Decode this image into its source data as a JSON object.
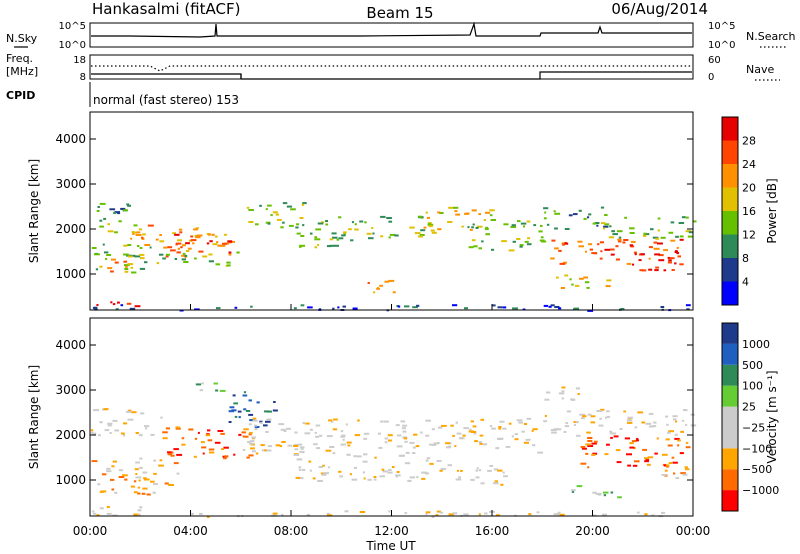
{
  "header": {
    "station": "Hankasalmi (fitACF)",
    "beam": "Beam 15",
    "date": "06/Aug/2014"
  },
  "top_panels": {
    "nsky_label": "N.Sky",
    "nsearch_label": "N.Search",
    "noise_ticks": [
      "10^5",
      "10^0"
    ],
    "freq_label": "Freq.",
    "freq_unit": "[MHz]",
    "freq_ticks": [
      "18",
      "8"
    ],
    "nave_label": "Nave",
    "nave_ticks": [
      "60",
      "0"
    ],
    "cpid_label": "CPID",
    "cpid_text": "normal (fast stereo) 153"
  },
  "colors": {
    "power_scale": [
      "#0000ff",
      "#1e3a8a",
      "#2e8b57",
      "#66c000",
      "#e0c000",
      "#ff9000",
      "#ff4500",
      "#e60000"
    ],
    "velocity_scale": [
      "#ff0000",
      "#ff6a00",
      "#ffa500",
      "#cccccc",
      "#cccccc",
      "#66cc33",
      "#2e8b57",
      "#1e5fbf",
      "#1e3a8a"
    ]
  },
  "chart_data": [
    {
      "type": "heatmap",
      "name": "power",
      "xlabel": "",
      "ylabel": "Slant Range [km]",
      "xlim": [
        0,
        24
      ],
      "ylim": [
        200,
        4600
      ],
      "yticks": [
        "1000",
        "2000",
        "3000",
        "4000"
      ],
      "colorbar_label": "Power [dB]",
      "colorbar_ticks": [
        "4",
        "8",
        "12",
        "16",
        "20",
        "24",
        "28"
      ],
      "bands": [
        {
          "t0": 0.0,
          "t1": 2.2,
          "r0": 2200,
          "r1": 2600,
          "level": 2
        },
        {
          "t0": 0.3,
          "t1": 1.8,
          "r0": 1900,
          "r1": 2200,
          "level": 3
        },
        {
          "t0": 0.0,
          "t1": 3.0,
          "r0": 1050,
          "r1": 1700,
          "level": 3
        },
        {
          "t0": 0.5,
          "t1": 1.5,
          "r0": 1050,
          "r1": 1350,
          "level": 6
        },
        {
          "t0": 0.0,
          "t1": 2.0,
          "r0": 300,
          "r1": 420,
          "level": 7
        },
        {
          "t0": 1.6,
          "t1": 5.8,
          "r0": 1500,
          "r1": 2100,
          "level": 5
        },
        {
          "t0": 3.0,
          "t1": 5.6,
          "r0": 1400,
          "r1": 1900,
          "level": 6
        },
        {
          "t0": 2.5,
          "t1": 6.0,
          "r0": 1200,
          "r1": 1500,
          "level": 3
        },
        {
          "t0": 6.0,
          "t1": 8.5,
          "r0": 2100,
          "r1": 2600,
          "level": 3
        },
        {
          "t0": 7.5,
          "t1": 10.5,
          "r0": 1600,
          "r1": 2300,
          "level": 3
        },
        {
          "t0": 10.5,
          "t1": 13.5,
          "r0": 1800,
          "r1": 2300,
          "level": 3
        },
        {
          "t0": 13.0,
          "t1": 16.0,
          "r0": 1900,
          "r1": 2500,
          "level": 4
        },
        {
          "t0": 15.0,
          "t1": 18.0,
          "r0": 1500,
          "r1": 2200,
          "level": 3
        },
        {
          "t0": 18.0,
          "t1": 20.5,
          "r0": 2000,
          "r1": 2500,
          "level": 2
        },
        {
          "t0": 18.0,
          "t1": 23.5,
          "r0": 1200,
          "r1": 1800,
          "level": 6
        },
        {
          "t0": 21.5,
          "t1": 23.5,
          "r0": 1000,
          "r1": 1500,
          "level": 7
        },
        {
          "t0": 20.0,
          "t1": 24.0,
          "r0": 1800,
          "r1": 2300,
          "level": 3
        },
        {
          "t0": 11.0,
          "t1": 12.3,
          "r0": 500,
          "r1": 900,
          "level": 5
        },
        {
          "t0": 18.5,
          "t1": 21.0,
          "r0": 700,
          "r1": 1000,
          "level": 4
        },
        {
          "t0": 0.0,
          "t1": 24.0,
          "r0": 200,
          "r1": 330,
          "level": 1
        }
      ]
    },
    {
      "type": "heatmap",
      "name": "velocity",
      "xlabel": "Time UT",
      "ylabel": "Slant Range [km]",
      "xlim": [
        0,
        24
      ],
      "ylim": [
        200,
        4600
      ],
      "xticks": [
        "00:00",
        "04:00",
        "08:00",
        "12:00",
        "16:00",
        "20:00",
        "00:00"
      ],
      "yticks": [
        "1000",
        "2000",
        "3000",
        "4000"
      ],
      "colorbar_label": "Velocity [m s⁻¹]",
      "colorbar_ticks": [
        "1000",
        "500",
        "100",
        "25",
        "−25",
        "−100",
        "−500",
        "−1000"
      ],
      "bands": [
        {
          "t0": 0.0,
          "t1": 3.0,
          "r0": 2000,
          "r1": 2600,
          "level": 3
        },
        {
          "t0": 0.0,
          "t1": 3.5,
          "r0": 700,
          "r1": 1500,
          "level": 2
        },
        {
          "t0": 0.0,
          "t1": 2.0,
          "r0": 250,
          "r1": 450,
          "level": 3
        },
        {
          "t0": 2.8,
          "t1": 6.5,
          "r0": 1500,
          "r1": 2200,
          "level": 1
        },
        {
          "t0": 5.5,
          "t1": 7.5,
          "r0": 2200,
          "r1": 3000,
          "level": 7
        },
        {
          "t0": 6.0,
          "t1": 18.0,
          "r0": 1600,
          "r1": 2400,
          "level": 3
        },
        {
          "t0": 8.0,
          "t1": 14.0,
          "r0": 1000,
          "r1": 1600,
          "level": 3
        },
        {
          "t0": 14.0,
          "t1": 16.5,
          "r0": 900,
          "r1": 1400,
          "level": 3
        },
        {
          "t0": 18.0,
          "t1": 24.0,
          "r0": 2000,
          "r1": 2600,
          "level": 3
        },
        {
          "t0": 19.5,
          "t1": 24.0,
          "r0": 1300,
          "r1": 2000,
          "level": 1
        },
        {
          "t0": 19.0,
          "t1": 21.0,
          "r0": 600,
          "r1": 900,
          "level": 5
        },
        {
          "t0": 22.5,
          "t1": 24.0,
          "r0": 900,
          "r1": 1400,
          "level": 2
        },
        {
          "t0": 18.0,
          "t1": 20.0,
          "r0": 2800,
          "r1": 3100,
          "level": 3
        },
        {
          "t0": 4.0,
          "t1": 5.5,
          "r0": 3000,
          "r1": 3200,
          "level": 5
        },
        {
          "t0": 0.0,
          "t1": 24.0,
          "r0": 200,
          "r1": 330,
          "level": 3
        }
      ]
    }
  ]
}
